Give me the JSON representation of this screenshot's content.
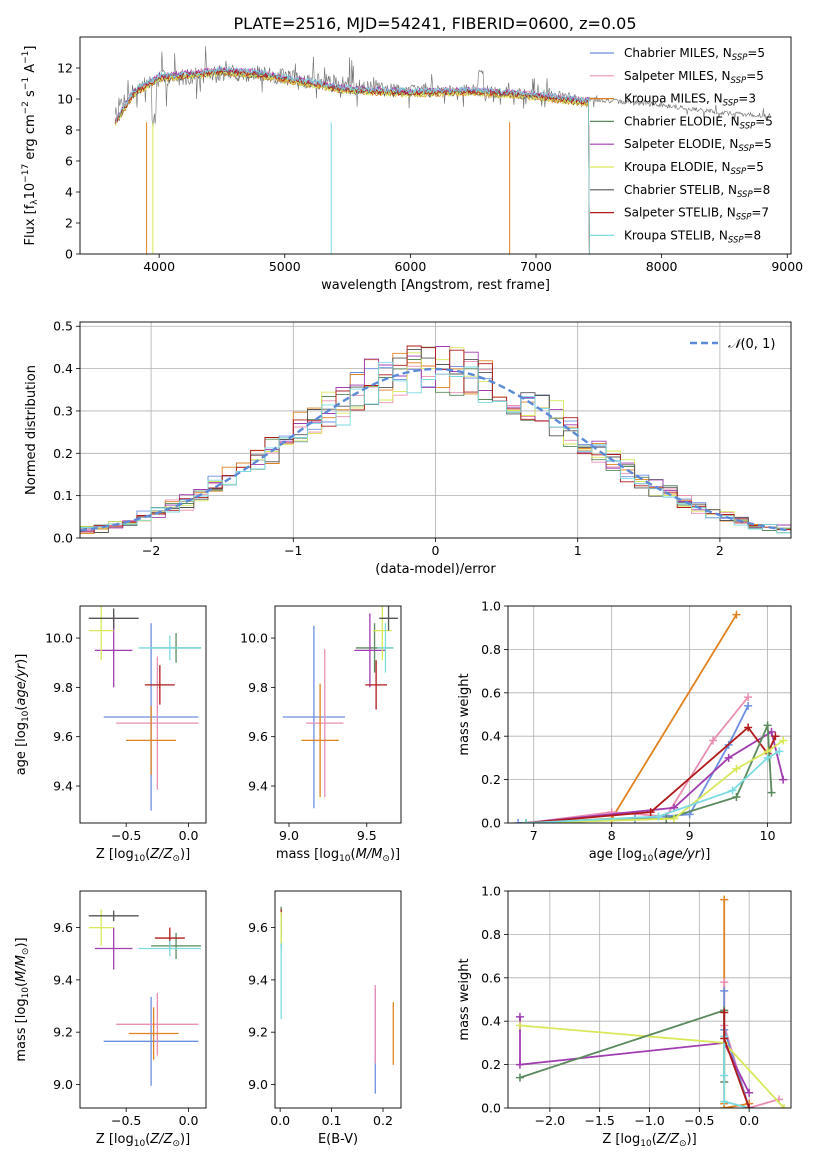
{
  "figure_title": "PLATE=2516, MJD=54241, FIBERID=0600, z=0.05",
  "legend_spectrum": [
    {
      "label": "Chabrier MILES, N",
      "sub": "SSP",
      "tail": "=5",
      "color": "#6c8fe0"
    },
    {
      "label": "Salpeter MILES, N",
      "sub": "SSP",
      "tail": "=5",
      "color": "#e98fb4"
    },
    {
      "label": "Kroupa MILES, N",
      "sub": "SSP",
      "tail": "=3",
      "color": "#e0821f"
    },
    {
      "label": "Chabrier ELODIE, N",
      "sub": "SSP",
      "tail": "=5",
      "color": "#5a8a5e"
    },
    {
      "label": "Salpeter ELODIE, N",
      "sub": "SSP",
      "tail": "=5",
      "color": "#a03cb0"
    },
    {
      "label": "Kroupa ELODIE, N",
      "sub": "SSP",
      "tail": "=5",
      "color": "#d9e85a"
    },
    {
      "label": "Chabrier STELIB, N",
      "sub": "SSP",
      "tail": "=8",
      "color": "#555555"
    },
    {
      "label": "Salpeter STELIB, N",
      "sub": "SSP",
      "tail": "=7",
      "color": "#b01a1a"
    },
    {
      "label": "Kroupa STELIB, N",
      "sub": "SSP",
      "tail": "=8",
      "color": "#7adbe0"
    }
  ],
  "chart_data": [
    {
      "id": "spectrum",
      "type": "line",
      "xlabel": "wavelength [Angstrom, rest frame]",
      "ylabel": "Flux [f_λ10^-17 erg cm^-2 s^-1 A^-1]",
      "xlim": [
        3370,
        9030
      ],
      "ylim": [
        0,
        14
      ],
      "xticks": [
        4000,
        5000,
        6000,
        7000,
        8000,
        9000
      ],
      "yticks": [
        0,
        2,
        4,
        6,
        8,
        10,
        12
      ],
      "data_continuum": {
        "x": [
          3650,
          3800,
          4000,
          4300,
          4500,
          4800,
          5000,
          5500,
          6000,
          6500,
          7000,
          7400,
          8000,
          8500,
          8870
        ],
        "y": [
          9.3,
          10.6,
          11.3,
          11.5,
          11.7,
          11.6,
          11.4,
          10.9,
          10.6,
          10.6,
          10.3,
          10.0,
          9.6,
          9.1,
          8.9
        ]
      },
      "models_continuum": {
        "x": [
          3650,
          3800,
          4000,
          4300,
          4500,
          4800,
          5000,
          5500,
          6000,
          6500,
          7000,
          7400
        ],
        "y": [
          8.5,
          10.4,
          11.4,
          11.6,
          11.8,
          11.6,
          11.3,
          10.6,
          10.4,
          10.5,
          10.2,
          9.8
        ]
      },
      "grid": false
    },
    {
      "id": "residual-hist",
      "type": "line",
      "xlabel": "(data-model)/error",
      "ylabel": "Normed distribution",
      "xlim": [
        -2.5,
        2.5
      ],
      "ylim": [
        0,
        0.51
      ],
      "xticks": [
        -2,
        -1,
        0,
        1,
        2
      ],
      "yticks": [
        0.0,
        0.1,
        0.2,
        0.3,
        0.4,
        0.5
      ],
      "legend": "N(0,1)",
      "legend_color": "#5a8ad8",
      "bin_width": 0.1,
      "grid": true
    },
    {
      "id": "age-vs-Z",
      "type": "scatter",
      "xlabel": "Z [log10(Z/Z☉)]",
      "ylabel": "age  [log10(age/yr)]",
      "xlim": [
        -0.87,
        0.14
      ],
      "ylim": [
        9.25,
        10.13
      ],
      "xticks": [
        -0.5,
        0.0
      ],
      "yticks": [
        9.4,
        9.6,
        9.8,
        10.0
      ],
      "points": [
        {
          "x": -0.3,
          "y": 9.68,
          "xerr": 0.38,
          "yerr": 0.38,
          "color": "#6c8fe0"
        },
        {
          "x": -0.25,
          "y": 9.655,
          "xerr": 0.33,
          "yerr": 0.27,
          "color": "#e98fb4"
        },
        {
          "x": -0.3,
          "y": 9.585,
          "xerr": 0.2,
          "yerr": 0.14,
          "color": "#e0821f"
        },
        {
          "x": -0.1,
          "y": 9.96,
          "xerr": 0.2,
          "yerr": 0.06,
          "color": "#5a8a5e"
        },
        {
          "x": -0.6,
          "y": 9.95,
          "xerr": 0.15,
          "yerr": 0.15,
          "color": "#a03cb0"
        },
        {
          "x": -0.7,
          "y": 10.03,
          "xerr": 0.1,
          "yerr": 0.12,
          "color": "#d9e85a"
        },
        {
          "x": -0.6,
          "y": 10.08,
          "xerr": 0.2,
          "yerr": 0.04,
          "color": "#555555"
        },
        {
          "x": -0.23,
          "y": 9.81,
          "xerr": 0.12,
          "yerr": 0.08,
          "color": "#b01a1a"
        },
        {
          "x": -0.15,
          "y": 9.96,
          "xerr": 0.25,
          "yerr": 0.05,
          "color": "#7adbe0"
        }
      ]
    },
    {
      "id": "age-vs-mass",
      "type": "scatter",
      "xlabel": "mass [log10(M/M☉)]",
      "ylabel": "",
      "xlim": [
        8.91,
        9.72
      ],
      "ylim": [
        9.25,
        10.13
      ],
      "xticks": [
        9.0,
        9.5
      ],
      "yticks": [
        9.4,
        9.6,
        9.8,
        10.0
      ],
      "points": [
        {
          "x": 9.16,
          "y": 9.68,
          "xerr": 0.2,
          "yerr": 0.37,
          "color": "#6c8fe0"
        },
        {
          "x": 9.23,
          "y": 9.655,
          "xerr": 0.12,
          "yerr": 0.3,
          "color": "#e98fb4"
        },
        {
          "x": 9.2,
          "y": 9.585,
          "xerr": 0.12,
          "yerr": 0.23,
          "color": "#e0821f"
        },
        {
          "x": 9.55,
          "y": 9.96,
          "xerr": 0.12,
          "yerr": 0.1,
          "color": "#5a8a5e"
        },
        {
          "x": 9.52,
          "y": 9.95,
          "xerr": 0.1,
          "yerr": 0.15,
          "color": "#a03cb0"
        },
        {
          "x": 9.6,
          "y": 10.03,
          "xerr": 0.06,
          "yerr": 0.12,
          "color": "#d9e85a"
        },
        {
          "x": 9.64,
          "y": 10.08,
          "xerr": 0.06,
          "yerr": 0.05,
          "color": "#555555"
        },
        {
          "x": 9.56,
          "y": 9.81,
          "xerr": 0.07,
          "yerr": 0.1,
          "color": "#b01a1a"
        },
        {
          "x": 9.62,
          "y": 9.96,
          "xerr": 0.05,
          "yerr": 0.1,
          "color": "#7adbe0"
        }
      ]
    },
    {
      "id": "weight-vs-age",
      "type": "line",
      "xlabel": "age  [log10(age/yr)]",
      "ylabel": "mass weight",
      "xlim": [
        6.67,
        10.3
      ],
      "ylim": [
        0,
        1.0
      ],
      "xticks": [
        7,
        8,
        9,
        10
      ],
      "yticks": [
        0.0,
        0.2,
        0.4,
        0.6,
        0.8,
        1.0
      ],
      "grid": true,
      "series": [
        {
          "color": "#e0821f",
          "x": [
            6.9,
            8.0,
            9.6
          ],
          "y": [
            0.0,
            0.02,
            0.96
          ]
        },
        {
          "color": "#e98fb4",
          "x": [
            6.9,
            8.0,
            8.7,
            9.3,
            9.75
          ],
          "y": [
            0.0,
            0.05,
            0.03,
            0.38,
            0.58
          ]
        },
        {
          "color": "#6c8fe0",
          "x": [
            6.8,
            8.3,
            9.0,
            9.5,
            9.75
          ],
          "y": [
            0.0,
            0.02,
            0.04,
            0.36,
            0.54
          ]
        },
        {
          "color": "#a03cb0",
          "x": [
            6.9,
            8.8,
            9.5,
            10.05,
            10.2
          ],
          "y": [
            0.0,
            0.07,
            0.3,
            0.42,
            0.2
          ]
        },
        {
          "color": "#b01a1a",
          "x": [
            6.9,
            8.5,
            9.75,
            10.0,
            10.1
          ],
          "y": [
            0.0,
            0.05,
            0.44,
            0.32,
            0.4
          ]
        },
        {
          "color": "#5a8a5e",
          "x": [
            6.9,
            8.7,
            9.6,
            10.0,
            10.05
          ],
          "y": [
            0.0,
            0.02,
            0.12,
            0.45,
            0.14
          ]
        },
        {
          "color": "#d9e85a",
          "x": [
            6.9,
            8.8,
            9.6,
            10.0,
            10.2
          ],
          "y": [
            0.0,
            0.02,
            0.25,
            0.33,
            0.38
          ]
        },
        {
          "color": "#7adbe0",
          "x": [
            6.9,
            8.6,
            9.55,
            10.0,
            10.15
          ],
          "y": [
            0.0,
            0.03,
            0.15,
            0.3,
            0.33
          ]
        }
      ]
    },
    {
      "id": "mass-vs-Z",
      "type": "scatter",
      "xlabel": "Z [log10(Z/Z☉)]",
      "ylabel": "mass [log10(M/M☉)]",
      "xlim": [
        -0.87,
        0.14
      ],
      "ylim": [
        8.91,
        9.74
      ],
      "xticks": [
        -0.5,
        0.0
      ],
      "yticks": [
        9.0,
        9.2,
        9.4,
        9.6
      ],
      "points": [
        {
          "x": -0.3,
          "y": 9.165,
          "xerr": 0.38,
          "yerr": 0.17,
          "color": "#6c8fe0"
        },
        {
          "x": -0.25,
          "y": 9.23,
          "xerr": 0.33,
          "yerr": 0.12,
          "color": "#e98fb4"
        },
        {
          "x": -0.28,
          "y": 9.195,
          "xerr": 0.2,
          "yerr": 0.1,
          "color": "#e0821f"
        },
        {
          "x": -0.1,
          "y": 9.53,
          "xerr": 0.2,
          "yerr": 0.05,
          "color": "#5a8a5e"
        },
        {
          "x": -0.6,
          "y": 9.52,
          "xerr": 0.15,
          "yerr": 0.08,
          "color": "#a03cb0"
        },
        {
          "x": -0.7,
          "y": 9.6,
          "xerr": 0.1,
          "yerr": 0.07,
          "color": "#d9e85a"
        },
        {
          "x": -0.6,
          "y": 9.645,
          "xerr": 0.2,
          "yerr": 0.02,
          "color": "#555555"
        },
        {
          "x": -0.15,
          "y": 9.56,
          "xerr": 0.12,
          "yerr": 0.04,
          "color": "#b01a1a"
        },
        {
          "x": -0.15,
          "y": 9.52,
          "xerr": 0.25,
          "yerr": 0.03,
          "color": "#7adbe0"
        }
      ]
    },
    {
      "id": "mass-vs-EBV",
      "type": "scatter",
      "xlabel": "E(B-V)",
      "ylabel": "",
      "xlim": [
        -0.01,
        0.235
      ],
      "ylim": [
        8.91,
        9.74
      ],
      "xticks": [
        0.0,
        0.1,
        0.2
      ],
      "yticks": [
        9.0,
        9.2,
        9.4,
        9.6
      ],
      "points": [
        {
          "x": 0.185,
          "y": 9.165,
          "xerr": 0,
          "yerr": 0.2,
          "color": "#6c8fe0"
        },
        {
          "x": 0.185,
          "y": 9.23,
          "xerr": 0,
          "yerr": 0.15,
          "color": "#e98fb4"
        },
        {
          "x": 0.22,
          "y": 9.195,
          "xerr": 0,
          "yerr": 0.12,
          "color": "#e0821f"
        },
        {
          "x": 0.002,
          "y": 9.6,
          "xerr": 0,
          "yerr": 0.08,
          "color": "#5a8a5e"
        },
        {
          "x": 0.002,
          "y": 9.62,
          "xerr": 0,
          "yerr": 0.05,
          "color": "#b01a1a"
        },
        {
          "x": 0.002,
          "y": 9.45,
          "xerr": 0,
          "yerr": 0.2,
          "color": "#7adbe0"
        },
        {
          "x": 0.002,
          "y": 9.6,
          "xerr": 0,
          "yerr": 0.06,
          "color": "#d9e85a"
        }
      ]
    },
    {
      "id": "weight-vs-Z",
      "type": "line",
      "xlabel": "Z [log10(Z/Z☉)]",
      "ylabel": "mass weight",
      "xlim": [
        -2.42,
        0.42
      ],
      "ylim": [
        0,
        1.0
      ],
      "xticks": [
        -2.0,
        -1.5,
        -1.0,
        -0.5,
        0.0
      ],
      "yticks": [
        0.0,
        0.2,
        0.4,
        0.6,
        0.8,
        1.0
      ],
      "grid": true,
      "series": [
        {
          "color": "#e0821f",
          "x": [
            -0.25,
            -0.25,
            -0.25,
            0.0
          ],
          "y": [
            0.96,
            0.02,
            0.0,
            0.02
          ]
        },
        {
          "color": "#e98fb4",
          "x": [
            -0.25,
            -0.25,
            0.0,
            0.3
          ],
          "y": [
            0.58,
            0.38,
            0.0,
            0.04
          ]
        },
        {
          "color": "#6c8fe0",
          "x": [
            -0.25,
            -0.25,
            0.0
          ],
          "y": [
            0.54,
            0.36,
            0.0
          ]
        },
        {
          "color": "#a03cb0",
          "x": [
            -2.3,
            -2.3,
            -0.25,
            0.0
          ],
          "y": [
            0.42,
            0.2,
            0.3,
            0.07
          ]
        },
        {
          "color": "#d9e85a",
          "x": [
            -2.3,
            -0.25,
            0.35
          ],
          "y": [
            0.38,
            0.3,
            0.0
          ]
        },
        {
          "color": "#5a8a5e",
          "x": [
            -2.3,
            -0.25,
            -0.25
          ],
          "y": [
            0.14,
            0.45,
            0.12
          ]
        },
        {
          "color": "#7adbe0",
          "x": [
            -0.25,
            -0.25,
            -0.25,
            0.0
          ],
          "y": [
            0.33,
            0.15,
            0.03,
            0.0
          ]
        },
        {
          "color": "#b01a1a",
          "x": [
            -0.25,
            -0.25,
            0.0
          ],
          "y": [
            0.44,
            0.32,
            0.0
          ]
        }
      ]
    }
  ]
}
